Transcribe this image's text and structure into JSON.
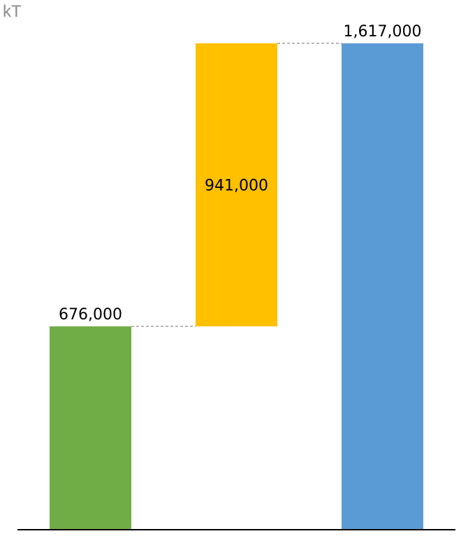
{
  "chart_data": {
    "type": "bar",
    "variant": "waterfall",
    "unit_label": "kT",
    "categories": [
      "",
      "",
      ""
    ],
    "bars": [
      {
        "kind": "start",
        "value": 676000,
        "label": "676,000",
        "color": "#70ad47"
      },
      {
        "kind": "increase",
        "value": 941000,
        "label": "941,000",
        "color": "#ffc000"
      },
      {
        "kind": "total",
        "value": 1617000,
        "label": "1,617,000",
        "color": "#5b9bd5"
      }
    ],
    "ylim": [
      0,
      1617000
    ],
    "grid": false,
    "legend": "none",
    "connector_color": "#8c8c8c"
  }
}
